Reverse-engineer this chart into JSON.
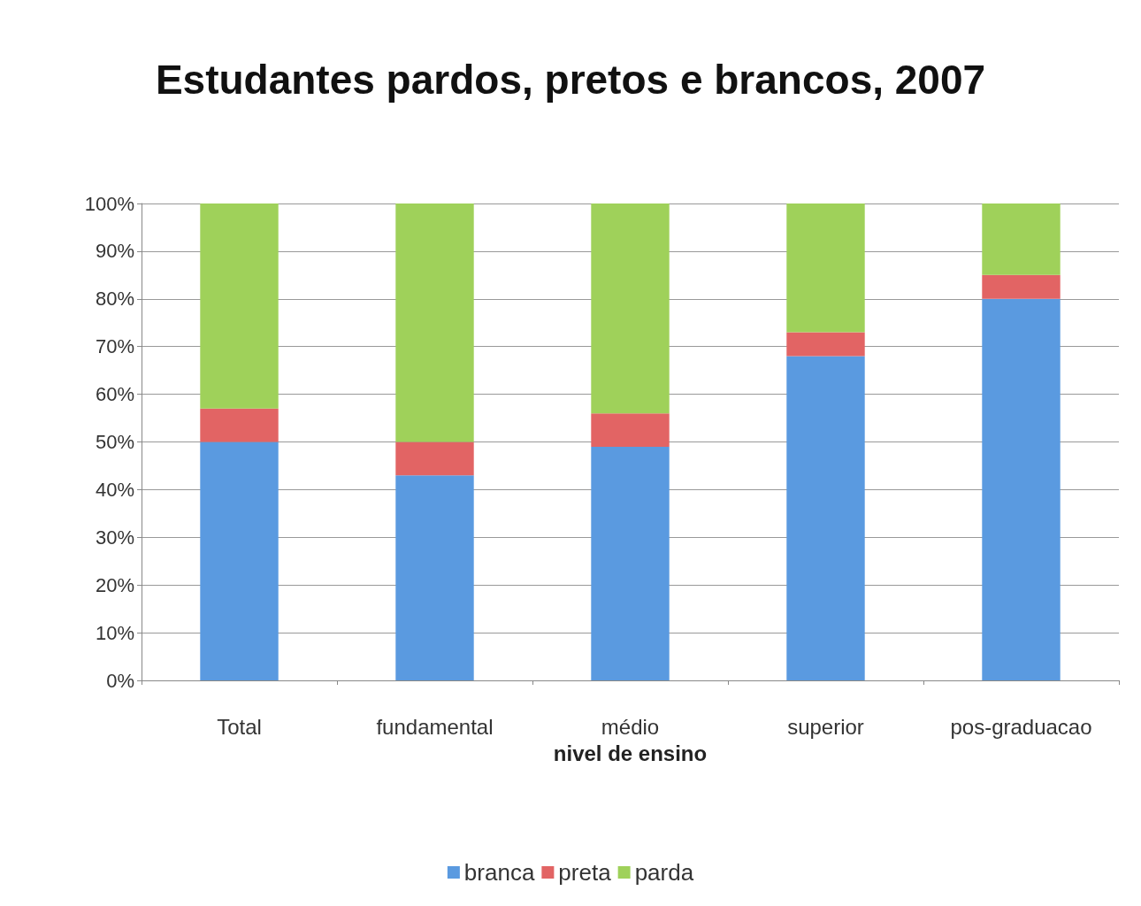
{
  "chart_data": {
    "type": "bar",
    "stacked": true,
    "title": "Estudantes pardos, pretos e brancos, 2007",
    "xlabel": "nivel de ensino",
    "categories": [
      "Total",
      "fundamental",
      "médio",
      "superior",
      "pos-graduacao"
    ],
    "series": [
      {
        "name": "branca",
        "color": "#5a9ae0",
        "values": [
          50,
          43,
          49,
          68,
          80
        ]
      },
      {
        "name": "preta",
        "color": "#e26464",
        "values": [
          7,
          7,
          7,
          5,
          5
        ]
      },
      {
        "name": "parda",
        "color": "#9fd15a",
        "values": [
          43,
          50,
          44,
          27,
          15
        ]
      }
    ],
    "ylim": [
      0,
      100
    ],
    "yticks": [
      {
        "value": 0,
        "label": "0%"
      },
      {
        "value": 10,
        "label": "10%"
      },
      {
        "value": 20,
        "label": "20%"
      },
      {
        "value": 30,
        "label": "30%"
      },
      {
        "value": 40,
        "label": "40%"
      },
      {
        "value": 50,
        "label": "50%"
      },
      {
        "value": 60,
        "label": "60%"
      },
      {
        "value": 70,
        "label": "70%"
      },
      {
        "value": 80,
        "label": "80%"
      },
      {
        "value": 90,
        "label": "90%"
      },
      {
        "value": 100,
        "label": "100%"
      }
    ],
    "grid": "y",
    "legend": "bottom"
  }
}
